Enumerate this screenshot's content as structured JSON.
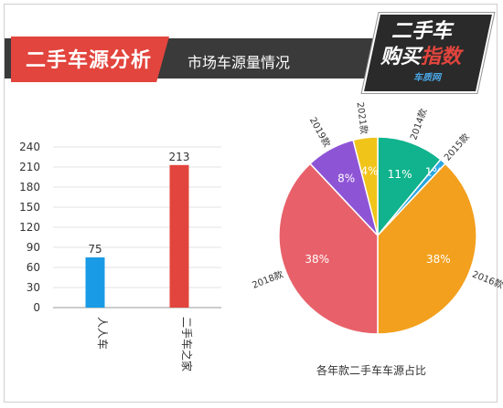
{
  "header": {
    "title": "二手车源分析",
    "subtitle": "市场车源量情况",
    "logo_line1": "二手车",
    "logo_line2_a": "购买",
    "logo_line2_b": "指数",
    "logo_brand": "车质网"
  },
  "colors": {
    "accent": "#e2453d",
    "bar_blue": "#1a9be6",
    "bar_red": "#e2453d"
  },
  "pie_caption": "各年款二手车车源占比",
  "chart_data": [
    {
      "type": "bar",
      "categories": [
        "人人车",
        "二手车之家"
      ],
      "values": [
        75,
        213
      ],
      "ylim": [
        0,
        240
      ],
      "yticks": [
        0,
        30,
        60,
        90,
        120,
        150,
        180,
        210,
        240
      ],
      "grid": true,
      "bar_colors": [
        "#1a9be6",
        "#e2453d"
      ]
    },
    {
      "type": "pie",
      "title": "各年款二手车车源占比",
      "slices": [
        {
          "label": "2014款",
          "value": 11,
          "pct_label": "11%",
          "color": "#10b38d"
        },
        {
          "label": "2015款",
          "value": 1,
          "pct_label": "1%",
          "color": "#2aa7e0"
        },
        {
          "label": "2016款",
          "value": 38,
          "pct_label": "38%",
          "color": "#f3a01e"
        },
        {
          "label": "2018款",
          "value": 38,
          "pct_label": "38%",
          "color": "#e8616a"
        },
        {
          "label": "2019款",
          "value": 8,
          "pct_label": "8%",
          "color": "#8e54d6"
        },
        {
          "label": "2021款",
          "value": 4,
          "pct_label": "4%",
          "color": "#f0c419"
        }
      ]
    }
  ]
}
